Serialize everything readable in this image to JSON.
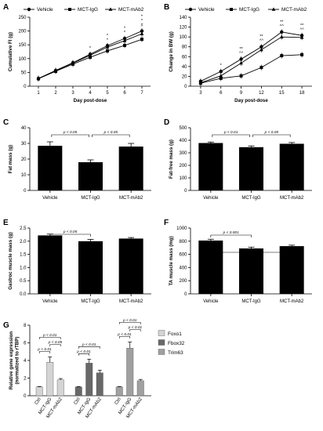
{
  "chart_data": [
    {
      "panel": "A",
      "type": "line",
      "xlabel": "Day post-dose",
      "ylabel": "Cumulative FI (g)",
      "x": [
        1,
        2,
        3,
        4,
        5,
        6,
        7
      ],
      "xlim": [
        0.5,
        7.5
      ],
      "ylim": [
        0,
        250
      ],
      "yticks": [
        0,
        50,
        100,
        150,
        200,
        250
      ],
      "series": [
        {
          "name": "Vehicle",
          "marker": "circle",
          "values": [
            28,
            57,
            85,
            116,
            147,
            173,
            200
          ]
        },
        {
          "name": "MCT-IgG",
          "marker": "square",
          "values": [
            27,
            54,
            80,
            105,
            128,
            148,
            170
          ]
        },
        {
          "name": "MCT-mAb2",
          "marker": "triangle",
          "values": [
            28,
            56,
            84,
            112,
            142,
            165,
            190
          ]
        }
      ],
      "annotations": [
        {
          "x": 4,
          "text": "*"
        },
        {
          "x": 5,
          "text": "*"
        },
        {
          "x": 5,
          "text": "*"
        },
        {
          "x": 6,
          "text": "*"
        },
        {
          "x": 6,
          "text": "*"
        },
        {
          "x": 7,
          "text": "#"
        },
        {
          "x": 7,
          "text": "*"
        },
        {
          "x": 7,
          "text": "*"
        }
      ]
    },
    {
      "panel": "B",
      "type": "line",
      "xlabel": "Day post-dose",
      "ylabel": "Change in BW (g)",
      "x": [
        3,
        6,
        9,
        12,
        15,
        18
      ],
      "xlim": [
        1.5,
        19.5
      ],
      "ylim": [
        0,
        140
      ],
      "yticks": [
        0,
        20,
        40,
        60,
        80,
        100,
        120,
        140
      ],
      "series": [
        {
          "name": "Vehicle",
          "marker": "circle",
          "values": [
            10,
            30,
            55,
            80,
            110,
            103
          ]
        },
        {
          "name": "MCT-IgG",
          "marker": "square",
          "values": [
            6,
            16,
            21,
            38,
            62,
            64
          ]
        },
        {
          "name": "MCT-mAb2",
          "marker": "triangle",
          "values": [
            7,
            21,
            47,
            74,
            100,
            99
          ]
        }
      ],
      "annotations": [
        {
          "x": 6,
          "text": "*"
        },
        {
          "x": 9,
          "text": "^^"
        },
        {
          "x": 9,
          "text": "**"
        },
        {
          "x": 12,
          "text": "^^"
        },
        {
          "x": 12,
          "text": "**"
        },
        {
          "x": 15,
          "text": "^^"
        },
        {
          "x": 15,
          "text": "**"
        },
        {
          "x": 18,
          "text": "^^"
        },
        {
          "x": 18,
          "text": "**"
        }
      ]
    },
    {
      "panel": "C",
      "type": "bar",
      "ylabel": "Fat mass (g)",
      "categories": [
        "Vehicle",
        "MCT-IgG",
        "MCT-mAb2"
      ],
      "values": [
        28.5,
        18,
        28
      ],
      "errors": [
        2.5,
        1.5,
        2
      ],
      "ylim": [
        0,
        40
      ],
      "yticks": [
        0,
        10,
        20,
        30,
        40
      ],
      "comparisons": [
        {
          "from": 0,
          "to": 1,
          "text": "p < 0.05"
        },
        {
          "from": 1,
          "to": 2,
          "text": "p < 0.05"
        }
      ]
    },
    {
      "panel": "D",
      "type": "bar",
      "ylabel": "Fat-free mass (g)",
      "categories": [
        "Vehicle",
        "MCT-IgG",
        "MCT-mAb2"
      ],
      "values": [
        378,
        345,
        372
      ],
      "errors": [
        8,
        10,
        10
      ],
      "ylim": [
        0,
        500
      ],
      "yticks": [
        0,
        100,
        200,
        300,
        400,
        500
      ],
      "comparisons": [
        {
          "from": 0,
          "to": 1,
          "text": "p < 0.01"
        },
        {
          "from": 1,
          "to": 2,
          "text": "p < 0.05"
        }
      ]
    },
    {
      "panel": "E",
      "type": "bar",
      "ylabel": "Gastroc muscle mass (g)",
      "categories": [
        "Vehicle",
        "MCT-IgG",
        "MCT-mAb2"
      ],
      "values": [
        2.22,
        2.0,
        2.1
      ],
      "errors": [
        0.05,
        0.07,
        0.04
      ],
      "ylim": [
        0,
        2.5
      ],
      "yticks": [
        0.0,
        0.5,
        1.0,
        1.5,
        2.0,
        2.5
      ],
      "comparisons": [
        {
          "from": 0,
          "to": 1,
          "text": "p < 0.05"
        }
      ]
    },
    {
      "panel": "F",
      "type": "bar",
      "ylabel": "TA muscle mass (mg)",
      "categories": [
        "Vehicle",
        "MCT-IgG",
        "MCT-mAb2"
      ],
      "values": [
        810,
        690,
        725
      ],
      "errors": [
        20,
        20,
        15
      ],
      "ylim": [
        0,
        1000
      ],
      "yticks": [
        0,
        200,
        400,
        600,
        800,
        1000
      ],
      "comparisons": [
        {
          "from": 0,
          "to": 1,
          "text": "p < 0.001"
        },
        {
          "from": 0,
          "to": 2,
          "text": "p < 0.05"
        }
      ]
    },
    {
      "panel": "G",
      "type": "bar",
      "ylabel": "Relative gene expression (normalized to rTBP)",
      "groups": [
        "Foxo1",
        "Fbox32",
        "Trim63"
      ],
      "categories": [
        "Ctrl",
        "MCT-IgG",
        "MCT-mAb2"
      ],
      "colors": {
        "Foxo1": "#d4d4d4",
        "Fbox32": "#686868",
        "Trim63": "#a0a0a0"
      },
      "values": [
        [
          1.0,
          3.8,
          1.8
        ],
        [
          1.0,
          3.7,
          2.6
        ],
        [
          1.0,
          5.4,
          1.7
        ]
      ],
      "errors": [
        [
          0.05,
          0.6,
          0.15
        ],
        [
          0.05,
          0.45,
          0.3
        ],
        [
          0.05,
          0.7,
          0.15
        ]
      ],
      "ylim": [
        0,
        8
      ],
      "yticks": [
        0,
        2,
        4,
        6,
        8
      ],
      "comparisons": [
        {
          "group": 0,
          "from": 0,
          "to": 1,
          "text": "p < 0.01"
        },
        {
          "group": 0,
          "from": 1,
          "to": 2,
          "text": "p < 0.05"
        },
        {
          "group": 0,
          "from": 0,
          "to": 2,
          "text": "p < 0.01"
        },
        {
          "group": 1,
          "from": 0,
          "to": 1,
          "text": "p < 0.01"
        },
        {
          "group": 1,
          "from": 0,
          "to": 2,
          "text": "p < 0.01"
        },
        {
          "group": 2,
          "from": 0,
          "to": 1,
          "text": "p < 0.01"
        },
        {
          "group": 2,
          "from": 1,
          "to": 2,
          "text": "p < 0.01"
        },
        {
          "group": 2,
          "from": 0,
          "to": 2,
          "text": "p < 0.01"
        }
      ]
    }
  ]
}
